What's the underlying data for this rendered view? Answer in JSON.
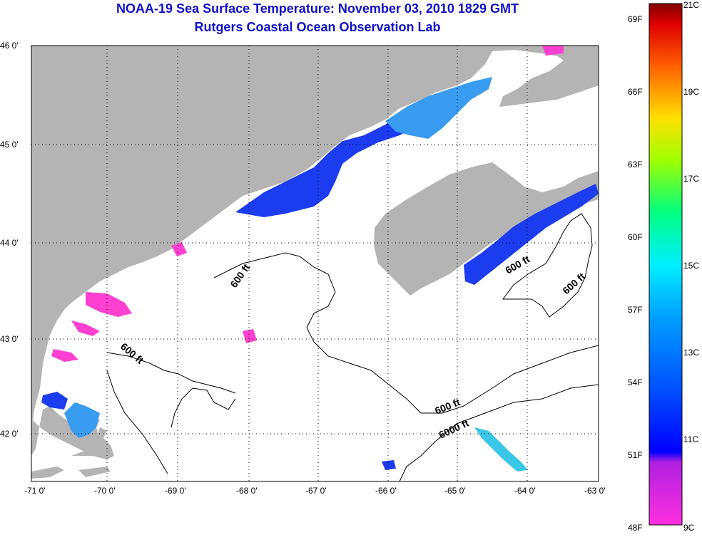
{
  "title": "NOAA-19 Sea Surface Temperature:  November 03, 2010 1829 GMT",
  "subtitle": "Rutgers Coastal Ocean Observation Lab",
  "lat_labels": [
    "46 0'",
    "45 0'",
    "44 0'",
    "43 0'",
    "42 0'"
  ],
  "lon_labels": [
    "-71 0'",
    "-70 0'",
    "-69 0'",
    "-68 0'",
    "-67 0'",
    "-66 0'",
    "-65 0'",
    "-64 0'",
    "-63 0'"
  ],
  "colorbar": {
    "fahrenheit": [
      "69F",
      "66F",
      "63F",
      "60F",
      "57F",
      "54F",
      "51F",
      "48F"
    ],
    "celsius": [
      "21C",
      "19C",
      "17C",
      "15C",
      "13C",
      "11C",
      "9C"
    ]
  },
  "contour_labels": [
    "600 ft",
    "600 ft",
    "600 ft",
    "600 ft",
    "6000 ft",
    "600 ft"
  ],
  "colors": {
    "land": "#b4b4b4",
    "ocean_cold": "#1c3cf0",
    "ocean_cool": "#3a9cf0",
    "ocean_mid": "#3ac6e6",
    "magenta": "#ff40d0",
    "title": "#1010c8"
  }
}
